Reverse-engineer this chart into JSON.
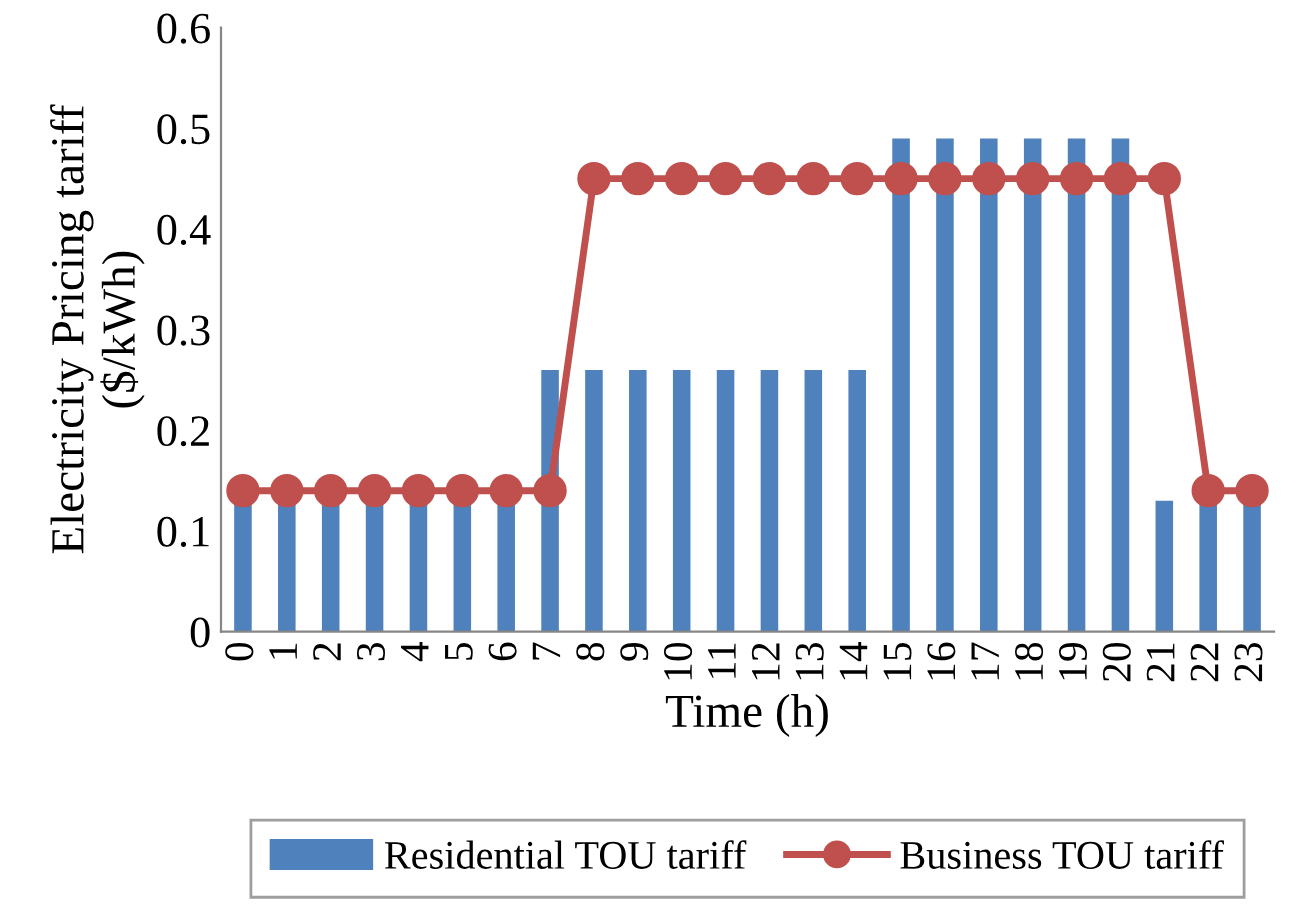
{
  "chart_data": {
    "type": "bar",
    "xlabel": "Time (h)",
    "ylabel": "Electricity Pricing tariff\n($/kWh)",
    "categories": [
      "0",
      "1",
      "2",
      "3",
      "4",
      "5",
      "6",
      "7",
      "8",
      "9",
      "10",
      "11",
      "12",
      "13",
      "14",
      "15",
      "16",
      "17",
      "18",
      "19",
      "20",
      "21",
      "22",
      "23"
    ],
    "series": [
      {
        "name": "Residential TOU tariff",
        "color": "#4f81bd",
        "values": [
          0.13,
          0.13,
          0.13,
          0.13,
          0.13,
          0.13,
          0.13,
          0.26,
          0.26,
          0.26,
          0.26,
          0.26,
          0.26,
          0.26,
          0.26,
          0.49,
          0.49,
          0.49,
          0.49,
          0.49,
          0.49,
          0.13,
          0.13,
          0.13
        ]
      },
      {
        "name": "Business TOU tariff",
        "type": "line",
        "color": "#c0504d",
        "marker": "circle",
        "values": [
          0.14,
          0.14,
          0.14,
          0.14,
          0.14,
          0.14,
          0.14,
          0.14,
          0.45,
          0.45,
          0.45,
          0.45,
          0.45,
          0.45,
          0.45,
          0.45,
          0.45,
          0.45,
          0.45,
          0.45,
          0.45,
          0.45,
          0.14,
          0.14
        ]
      }
    ],
    "ylim": [
      0,
      0.6
    ],
    "yticks": [
      {
        "value": 0,
        "label": "0"
      },
      0.1,
      0.2,
      0.3,
      0.4,
      0.5,
      0.6
    ],
    "grid": false,
    "legend": "bottom"
  }
}
